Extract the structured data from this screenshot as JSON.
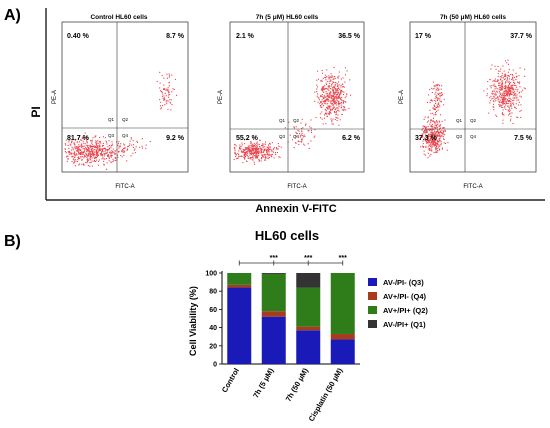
{
  "panel_a": {
    "label": "A)",
    "y_title": "PI",
    "x_title": "Annexin V-FITC",
    "plots": [
      {
        "title": "Control HL60 cells",
        "quadrant_values": {
          "q1": "0.40 %",
          "q2": "8.7 %",
          "q3": "81.7 %",
          "q4": "9.2 %"
        },
        "ylabel": "PE-A",
        "xlabel": "FITC-A",
        "quadrant_labels": [
          "Q1",
          "Q2",
          "Q3",
          "Q4"
        ]
      },
      {
        "title": "7h (5 μM) HL60 cells",
        "quadrant_values": {
          "q1": "2.1 %",
          "q2": "36.5 %",
          "q3": "55.2 %",
          "q4": "6.2 %"
        },
        "ylabel": "PE-A",
        "xlabel": "FITC-A",
        "quadrant_labels": [
          "Q1",
          "Q2",
          "Q3",
          "Q4"
        ]
      },
      {
        "title": "7h (50 μM) HL60 cells",
        "quadrant_values": {
          "q1": "17 %",
          "q2": "37.7 %",
          "q3": "37.3 %",
          "q4": "7.5 %"
        },
        "ylabel": "PE-A",
        "xlabel": "FITC-A",
        "quadrant_labels": [
          "Q1",
          "Q2",
          "Q3",
          "Q4"
        ]
      }
    ],
    "colors": {
      "dots": "#e8434b"
    }
  },
  "panel_b": {
    "label": "B)",
    "significance": [
      "***",
      "***",
      "***"
    ]
  },
  "chart_data": {
    "type": "bar",
    "stacked": true,
    "title": "HL60 cells",
    "xlabel": "",
    "ylabel": "Cell Viability (%)",
    "ylim": [
      0,
      100
    ],
    "yticks": [
      "0",
      "20",
      "40",
      "60",
      "80",
      "100"
    ],
    "categories": [
      "Control",
      "7h (5 μM)",
      "7h (50 μM)",
      "Cisplatin (50 μM)"
    ],
    "series": [
      {
        "name": "AV-/PI- (Q3)",
        "color": "#1a1ab8",
        "values": [
          84,
          52,
          37,
          27
        ]
      },
      {
        "name": "AV+/PI- (Q4)",
        "color": "#a83a1e",
        "values": [
          3,
          6,
          4,
          6
        ]
      },
      {
        "name": "AV+/PI+ (Q2)",
        "color": "#2e7d1a",
        "values": [
          13,
          41,
          43,
          67
        ]
      },
      {
        "name": "AV-/PI+ (Q1)",
        "color": "#333333",
        "values": [
          0,
          1,
          16,
          0
        ]
      }
    ],
    "legend_position": "right"
  }
}
